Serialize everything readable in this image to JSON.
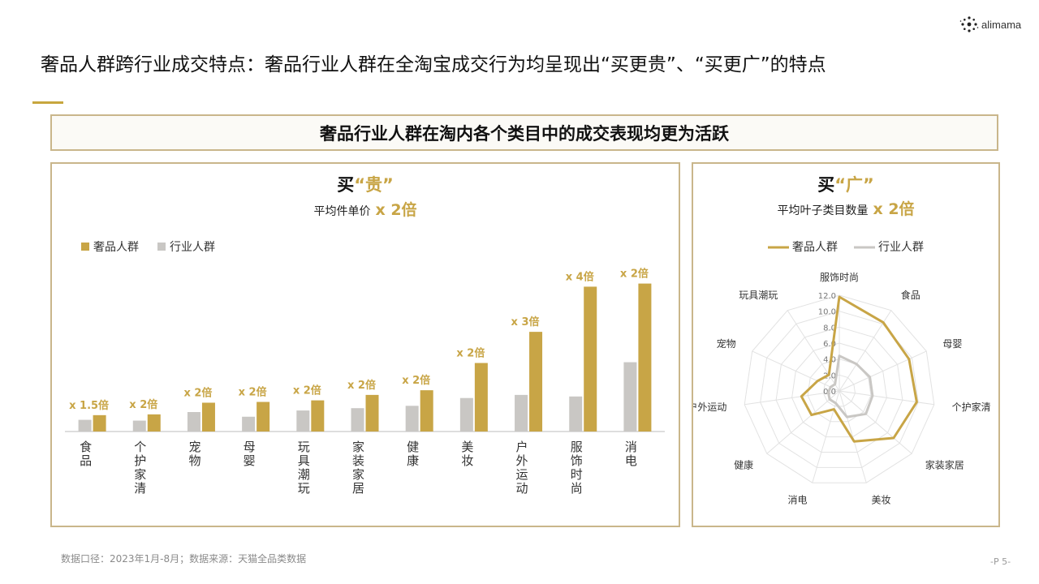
{
  "brand": {
    "name": "alimama"
  },
  "page_title": "奢品人群跨行业成交特点：奢品行业人群在全淘宝成交行为均呈现出“买更贵”、“买更广”的特点",
  "banner": "奢品行业人群在淘内各个类目中的成交表现均更为活跃",
  "footnote": "数据口径：2023年1月-8月；数据来源：天猫全品类数据",
  "page_number": "-P 5-",
  "colors": {
    "gold": "#C8A546",
    "grey": "#C9C7C4",
    "border": "#C9B68B"
  },
  "chart_data": [
    {
      "type": "bar",
      "title_prefix": "买",
      "title_highlight": "“贵”",
      "subtitle": "平均件单价",
      "subtitle_emph": "x 2倍",
      "legend": [
        "奢品人群",
        "行业人群"
      ],
      "legend_position": "top-left",
      "categories": [
        "食品",
        "个护家清",
        "宠物",
        "母婴",
        "玩具潮玩",
        "家装家居",
        "健康",
        "美妆",
        "户外运动",
        "服饰时尚",
        "消电"
      ],
      "series": [
        {
          "name": "奢品人群",
          "values": [
            21,
            22,
            37,
            38,
            40,
            47,
            53,
            88,
            128,
            186,
            190
          ]
        },
        {
          "name": "行业人群",
          "values": [
            15,
            14,
            25,
            19,
            27,
            30,
            33,
            43,
            47,
            45,
            89
          ]
        }
      ],
      "data_labels": [
        "x 1.5倍",
        "x 2倍",
        "x 2倍",
        "x 2倍",
        "x 2倍",
        "x 2倍",
        "x 2倍",
        "x 2倍",
        "x 3倍",
        "x 4倍",
        "x 2倍"
      ],
      "ylim": [
        0,
        200
      ],
      "grid": false
    },
    {
      "type": "radar",
      "title_prefix": "买",
      "title_highlight": "“广”",
      "subtitle": "平均叶子类目数量",
      "subtitle_emph": "x 2倍",
      "legend": [
        "奢品人群",
        "行业人群"
      ],
      "legend_position": "top",
      "axes": [
        "服饰时尚",
        "食品",
        "母婴",
        "个护家清",
        "家装家居",
        "美妆",
        "消电",
        "健康",
        "户外运动",
        "宠物",
        "玩具潮玩"
      ],
      "series": [
        {
          "name": "奢品人群",
          "values": [
            11.8,
            10.2,
            9.6,
            9.8,
            9.0,
            6.6,
            2.4,
            4.6,
            4.8,
            3.0,
            2.4
          ]
        },
        {
          "name": "行业人群",
          "values": [
            4.4,
            4.0,
            4.2,
            4.2,
            4.4,
            3.4,
            1.6,
            1.6,
            1.4,
            1.2,
            1.0
          ]
        }
      ],
      "radial_ticks": [
        "0.0",
        "2.0",
        "4.0",
        "6.0",
        "8.0",
        "10.0",
        "12.0"
      ],
      "rmax": 12,
      "grid": true
    }
  ]
}
